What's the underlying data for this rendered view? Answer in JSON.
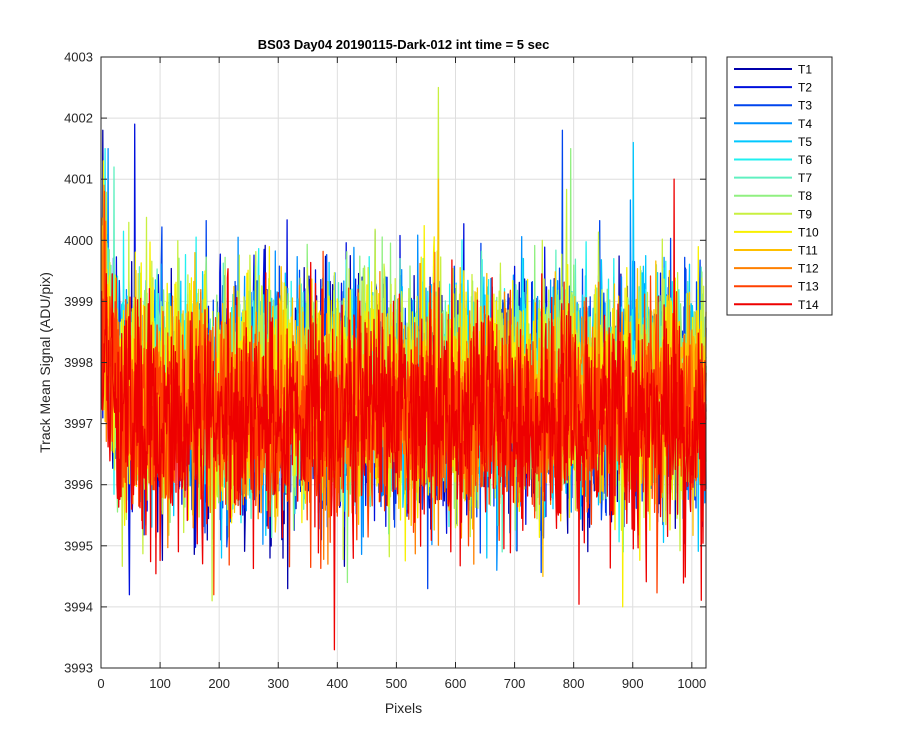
{
  "chart_data": {
    "type": "line",
    "title": "BS03 Day04 20190115-Dark-012 int time = 5 sec",
    "xlabel": "Pixels",
    "ylabel": "Track Mean Signal (ADU/pix)",
    "xlim": [
      0,
      1024
    ],
    "ylim": [
      3993,
      4003
    ],
    "grid": true,
    "legend_placement": "outside-top-right",
    "x_ticks": [
      "0",
      "100",
      "200",
      "300",
      "400",
      "500",
      "600",
      "700",
      "800",
      "900",
      "1000"
    ],
    "y_ticks": [
      "3993",
      "3994",
      "3995",
      "3996",
      "3997",
      "3998",
      "3999",
      "4000",
      "4001",
      "4002",
      "4003"
    ],
    "series": [
      {
        "name": "T1",
        "color": "#0000AA",
        "mean": 3997.35,
        "min": 3994.3,
        "max": 4001.8
      },
      {
        "name": "T2",
        "color": "#0010DD",
        "mean": 3997.4,
        "min": 3994.2,
        "max": 4001.9
      },
      {
        "name": "T3",
        "color": "#0045EE",
        "mean": 3997.45,
        "min": 3994.3,
        "max": 4001.8
      },
      {
        "name": "T4",
        "color": "#0090FF",
        "mean": 3997.55,
        "min": 3994.6,
        "max": 4001.5
      },
      {
        "name": "T5",
        "color": "#00C8FF",
        "mean": 3997.6,
        "min": 3994.8,
        "max": 4001.6
      },
      {
        "name": "T6",
        "color": "#20F0F0",
        "mean": 3997.65,
        "min": 3994.9,
        "max": 4001.5
      },
      {
        "name": "T7",
        "color": "#60F0C0",
        "mean": 3997.6,
        "min": 3994.9,
        "max": 4001.2
      },
      {
        "name": "T8",
        "color": "#90F080",
        "mean": 3997.55,
        "min": 3994.4,
        "max": 4001.5
      },
      {
        "name": "T9",
        "color": "#C8F040",
        "mean": 3997.5,
        "min": 3994.1,
        "max": 4002.5
      },
      {
        "name": "T10",
        "color": "#F8F000",
        "mean": 3997.45,
        "min": 3994.0,
        "max": 4001.3
      },
      {
        "name": "T11",
        "color": "#FFC000",
        "mean": 3997.35,
        "min": 3994.5,
        "max": 4001.0
      },
      {
        "name": "T12",
        "color": "#FF8000",
        "mean": 3997.25,
        "min": 3994.7,
        "max": 4000.9
      },
      {
        "name": "T13",
        "color": "#FF4000",
        "mean": 3997.15,
        "min": 3994.2,
        "max": 4000.8
      },
      {
        "name": "T14",
        "color": "#EE0000",
        "mean": 3997.05,
        "min": 3993.3,
        "max": 4001.0
      }
    ]
  }
}
